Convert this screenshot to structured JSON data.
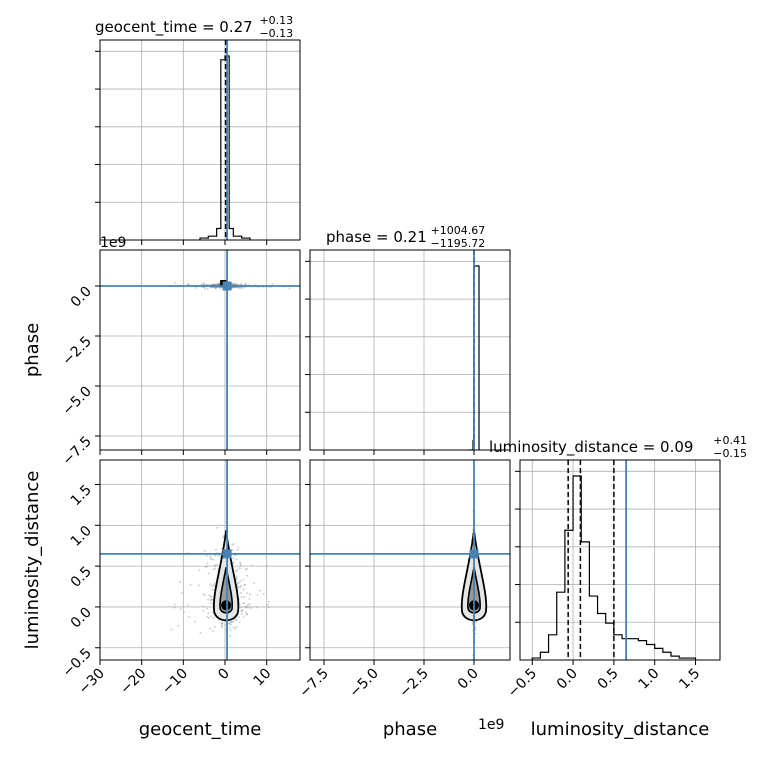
{
  "chart_data": {
    "type": "corner",
    "parameters": [
      "geocent_time",
      "phase",
      "luminosity_distance"
    ],
    "axis_labels": {
      "x": [
        "geocent_time",
        "phase",
        "luminosity_distance"
      ],
      "y_phase": "phase",
      "y_luminosity_distance": "luminosity_distance"
    },
    "titles": [
      {
        "param": "geocent_time",
        "text": "geocent_time = 0.27",
        "plus": "+0.13",
        "minus": "−0.13"
      },
      {
        "param": "phase",
        "text": "phase = 0.21",
        "plus": "+1004.67",
        "minus": "−1195.72"
      },
      {
        "param": "luminosity_distance",
        "text": "luminosity_distance = 0.09",
        "plus": "+0.41",
        "minus": "−0.15"
      }
    ],
    "offset_texts": {
      "phase_y": "1e9",
      "phase_x": "1e9"
    },
    "truths": {
      "geocent_time": 0.5,
      "phase": 0.0,
      "luminosity_distance": 0.65
    },
    "ranges": {
      "geocent_time": [
        -30,
        18
      ],
      "phase": [
        -8.2,
        1.8
      ],
      "luminosity_distance": [
        -0.65,
        1.8
      ]
    },
    "ticks": {
      "geocent_time": {
        "values": [
          -30,
          -20,
          -10,
          0,
          10
        ],
        "labels": [
          "−30",
          "−20",
          "−10",
          "0",
          "10"
        ]
      },
      "phase": {
        "values": [
          -7.5,
          -5.0,
          -2.5,
          0.0
        ],
        "labels": [
          "−7.5",
          "−5.0",
          "−2.5",
          "0.0"
        ]
      },
      "luminosity_distance": {
        "values": [
          -0.5,
          0.0,
          0.5,
          1.0,
          1.5
        ],
        "labels": [
          "−0.5",
          "0.0",
          "0.5",
          "1.0",
          "1.5"
        ]
      }
    },
    "quantiles": {
      "geocent_time": [
        0.14,
        0.27,
        0.4
      ],
      "phase": [
        -0.002,
        0.0,
        0.001
      ],
      "luminosity_distance": [
        -0.06,
        0.09,
        0.5
      ]
    },
    "histograms": {
      "geocent_time": {
        "edges": [
          -6,
          -4,
          -2,
          -1,
          0,
          1,
          2,
          4,
          6
        ],
        "counts": [
          0.01,
          0.02,
          0.06,
          0.94,
          0.96,
          0.06,
          0.02,
          0.01
        ]
      },
      "phase": {
        "edges": [
          -0.3,
          -0.05,
          0.0,
          0.25
        ],
        "counts": [
          0.0,
          0.05,
          0.95
        ]
      },
      "luminosity_distance": {
        "edges": [
          -0.5,
          -0.4,
          -0.3,
          -0.2,
          -0.1,
          0.0,
          0.1,
          0.2,
          0.3,
          0.4,
          0.5,
          0.6,
          0.7,
          0.8,
          0.9,
          1.0,
          1.1,
          1.2,
          1.3,
          1.4,
          1.5
        ],
        "counts": [
          0.01,
          0.04,
          0.13,
          0.35,
          0.67,
          0.95,
          0.61,
          0.33,
          0.24,
          0.19,
          0.13,
          0.11,
          0.11,
          0.1,
          0.08,
          0.06,
          0.04,
          0.02,
          0.01,
          0.01
        ]
      }
    },
    "grid": true,
    "truth_color": "#4682b4"
  }
}
